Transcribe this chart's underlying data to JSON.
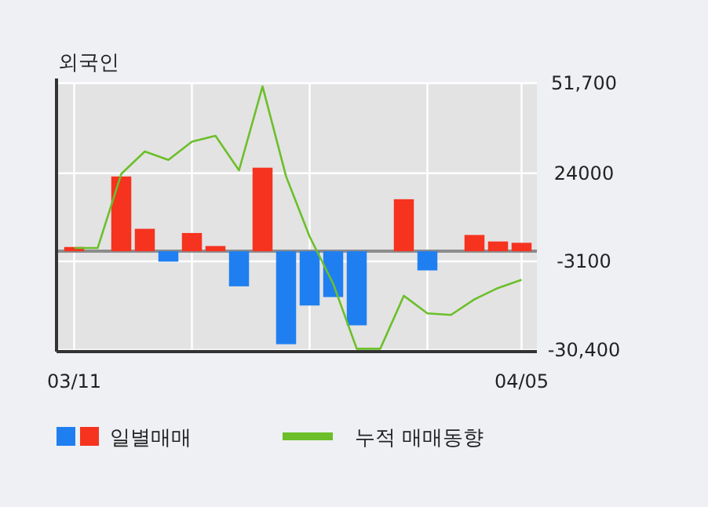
{
  "chart_data": {
    "type": "bar",
    "title": "외국인",
    "categories": [
      "03/11",
      null,
      null,
      null,
      null,
      null,
      null,
      null,
      null,
      null,
      null,
      null,
      null,
      null,
      null,
      null,
      null,
      null,
      null,
      "04/05"
    ],
    "series": [
      {
        "name": "일별매매",
        "values": [
          1300,
          0,
          23000,
          6900,
          -3200,
          5600,
          1600,
          -10800,
          25700,
          -28600,
          -16700,
          -14100,
          -22800,
          0,
          16000,
          -5900,
          0,
          5000,
          3000,
          2600
        ],
        "colors": [
          "#f5331f",
          "#f5331f",
          "#f5331f",
          "#f5331f",
          "#1f7ff0",
          "#f5331f",
          "#f5331f",
          "#1f7ff0",
          "#f5331f",
          "#1f7ff0",
          "#1f7ff0",
          "#1f7ff0",
          "#1f7ff0",
          "#f5331f",
          "#f5331f",
          "#1f7ff0",
          "#f5331f",
          "#f5331f",
          "#f5331f",
          "#f5331f"
        ]
      },
      {
        "name": "누적 매매동향",
        "type": "line",
        "color": "#6cbf2a",
        "values": [
          1000,
          1000,
          23800,
          30700,
          28100,
          33700,
          35500,
          24900,
          50700,
          23000,
          4500,
          -10000,
          -30000,
          -30000,
          -13700,
          -19100,
          -19600,
          -14800,
          -11300,
          -8800
        ]
      }
    ],
    "ylim": [
      -30400,
      51700
    ],
    "yticks": [
      {
        "value": 51700,
        "label": "51,700"
      },
      24000,
      -3100,
      {
        "value": -30400,
        "label": "-30,400"
      }
    ],
    "ref_lines": [
      {
        "axis": "y",
        "value": 0,
        "color": "#8c8c8c"
      }
    ],
    "grid": true,
    "legend": "bottom"
  }
}
